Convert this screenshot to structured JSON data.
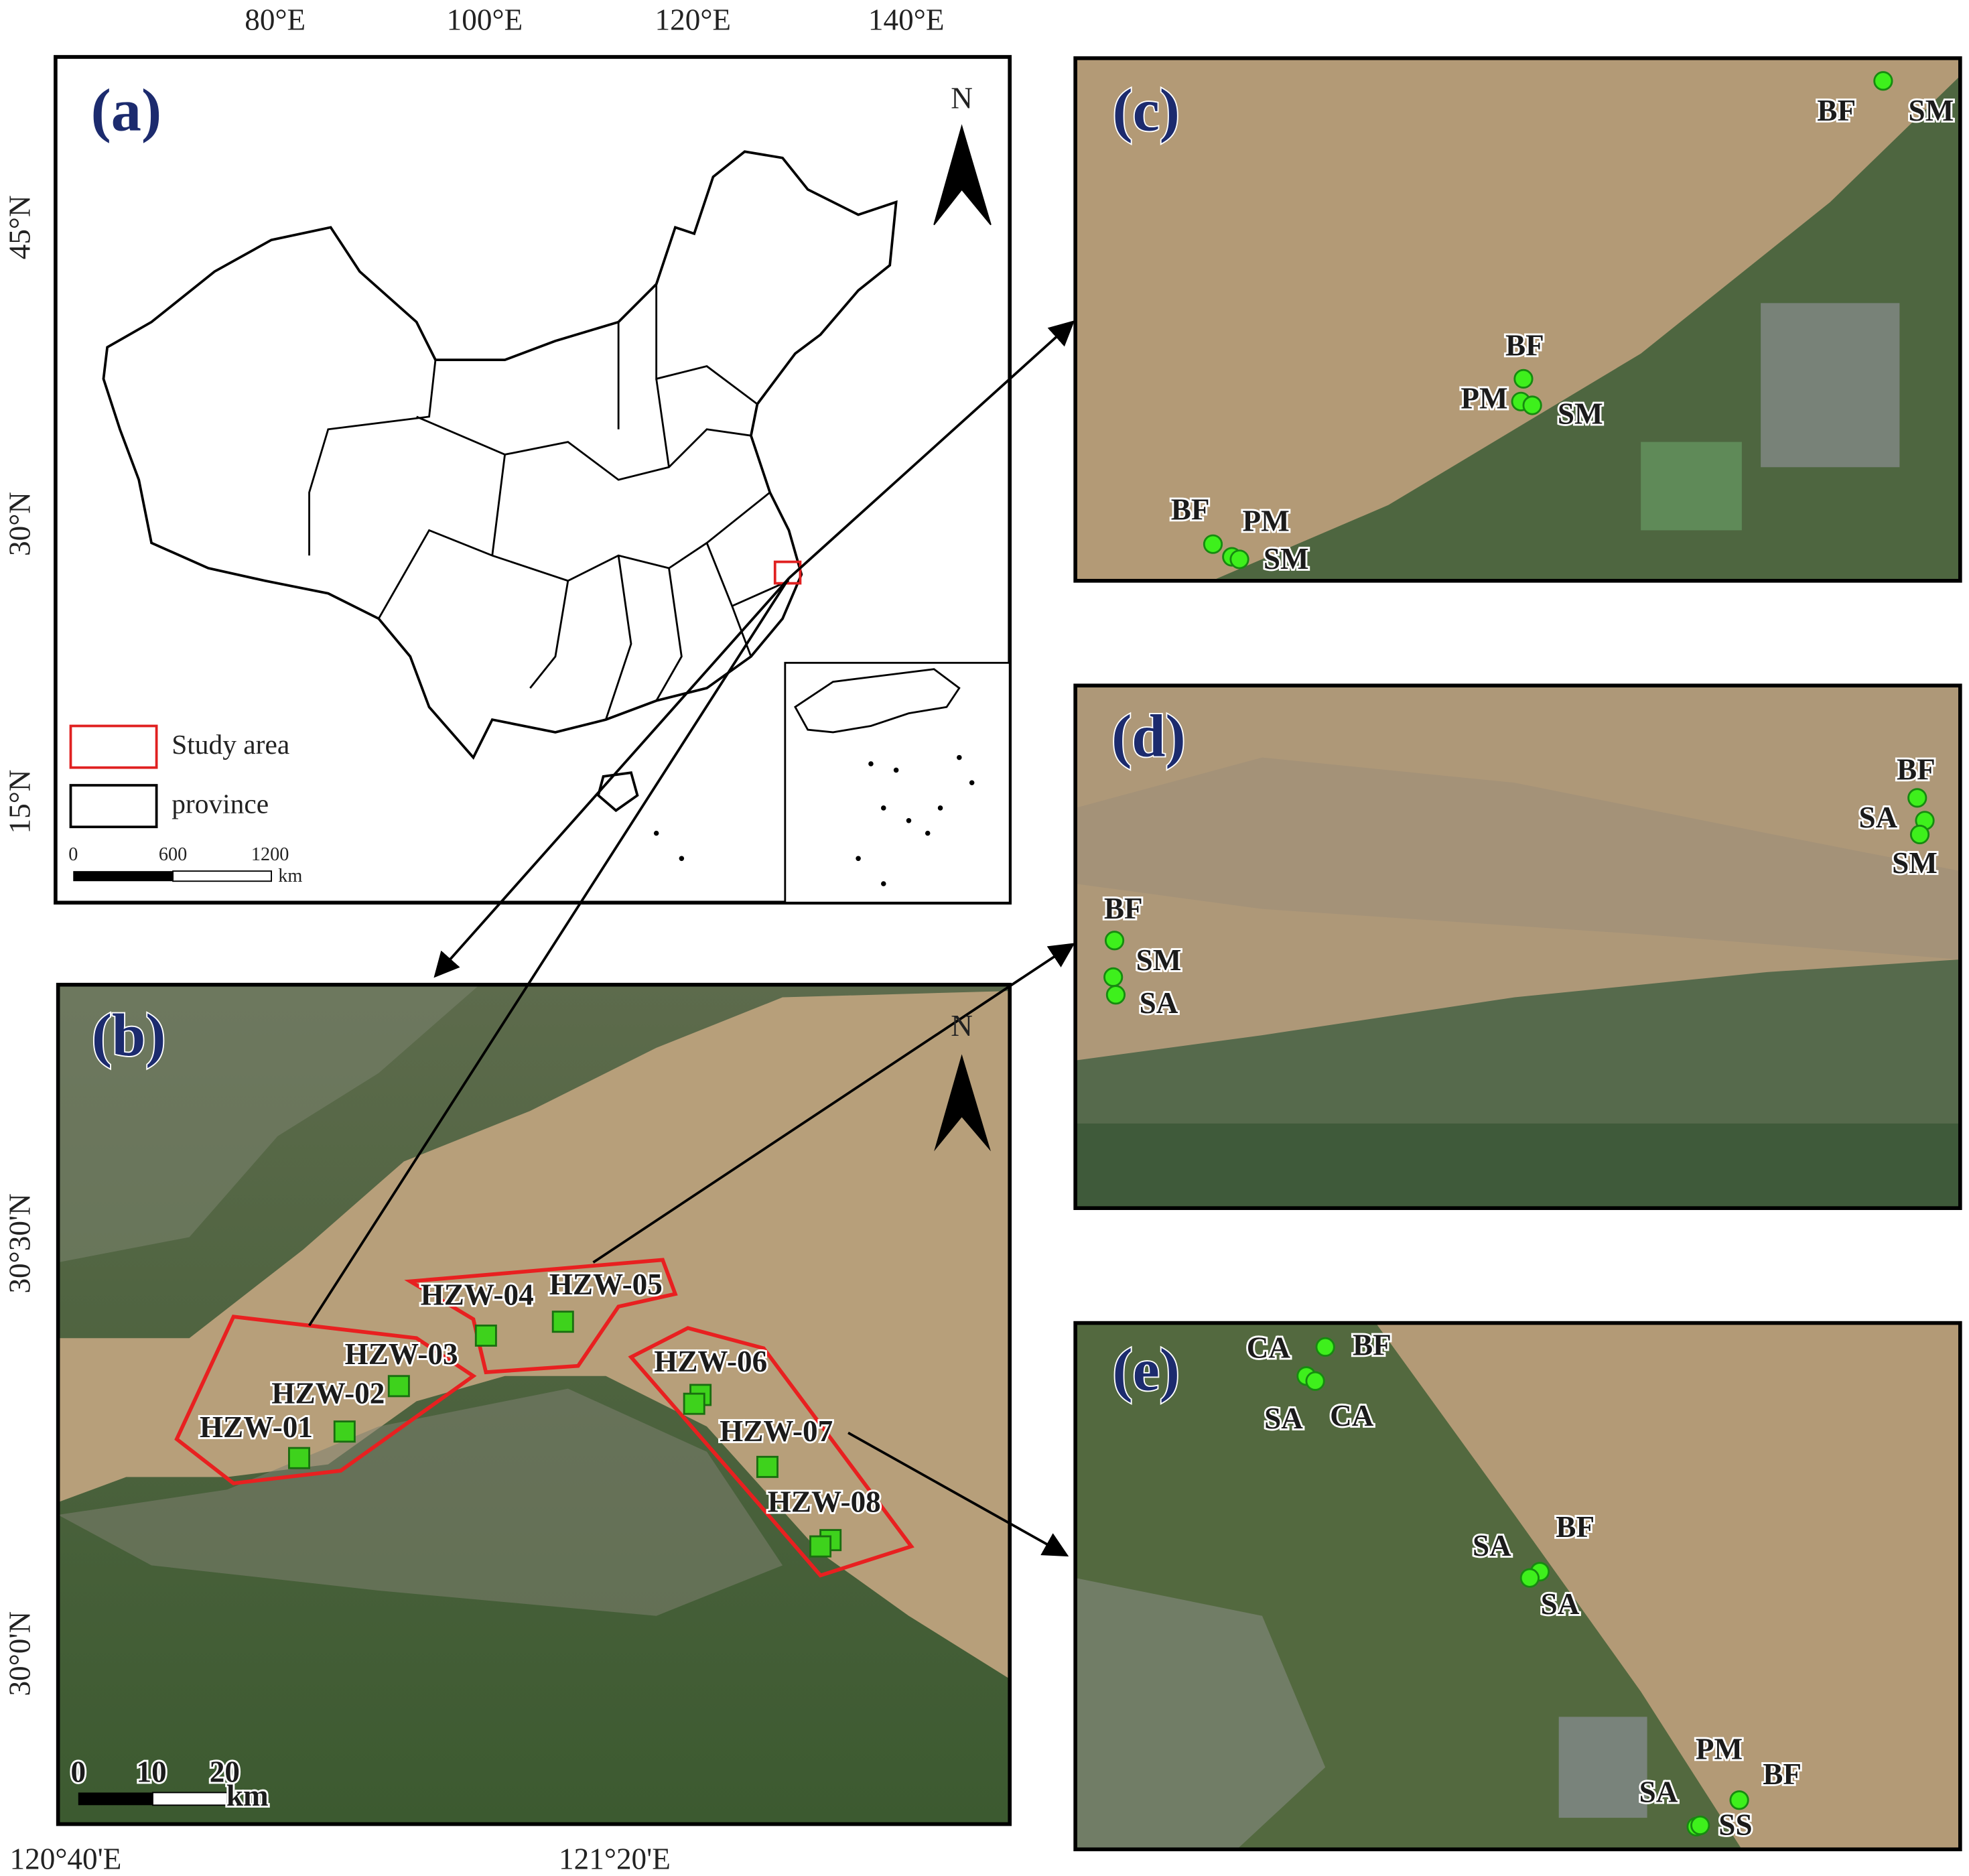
{
  "panels": {
    "a": {
      "label": "(a)",
      "north": "N",
      "lon_ticks": [
        "80°E",
        "100°E",
        "120°E",
        "140°E"
      ],
      "lat_ticks": [
        "45°N",
        "30°N",
        "15°N"
      ],
      "legend": [
        "Study area",
        "province"
      ],
      "scale": {
        "ticks": [
          0,
          600,
          1200
        ],
        "unit": "km"
      }
    },
    "b": {
      "label": "(b)",
      "north": "N",
      "lon_ticks": [
        "120°40'E",
        "121°20'E"
      ],
      "lat_ticks": [
        "30°30'N",
        "30°0'N"
      ],
      "scale": {
        "ticks": [
          0,
          10,
          20
        ],
        "unit": "km"
      },
      "sites": [
        "HZW-01",
        "HZW-02",
        "HZW-03",
        "HZW-04",
        "HZW-05",
        "HZW-06",
        "HZW-07",
        "HZW-08"
      ]
    },
    "c": {
      "label": "(c)",
      "site_labels": [
        "BF",
        "SM",
        "BF",
        "PM",
        "SM",
        "BF",
        "PM",
        "SM"
      ]
    },
    "d": {
      "label": "(d)",
      "site_labels": [
        "BF",
        "SA",
        "SM",
        "BF",
        "SM",
        "SA"
      ]
    },
    "e": {
      "label": "(e)",
      "site_labels": [
        "CA",
        "BF",
        "SA",
        "CA",
        "SA",
        "BF",
        "SA",
        "PM",
        "BF",
        "SA",
        "SS"
      ]
    }
  }
}
